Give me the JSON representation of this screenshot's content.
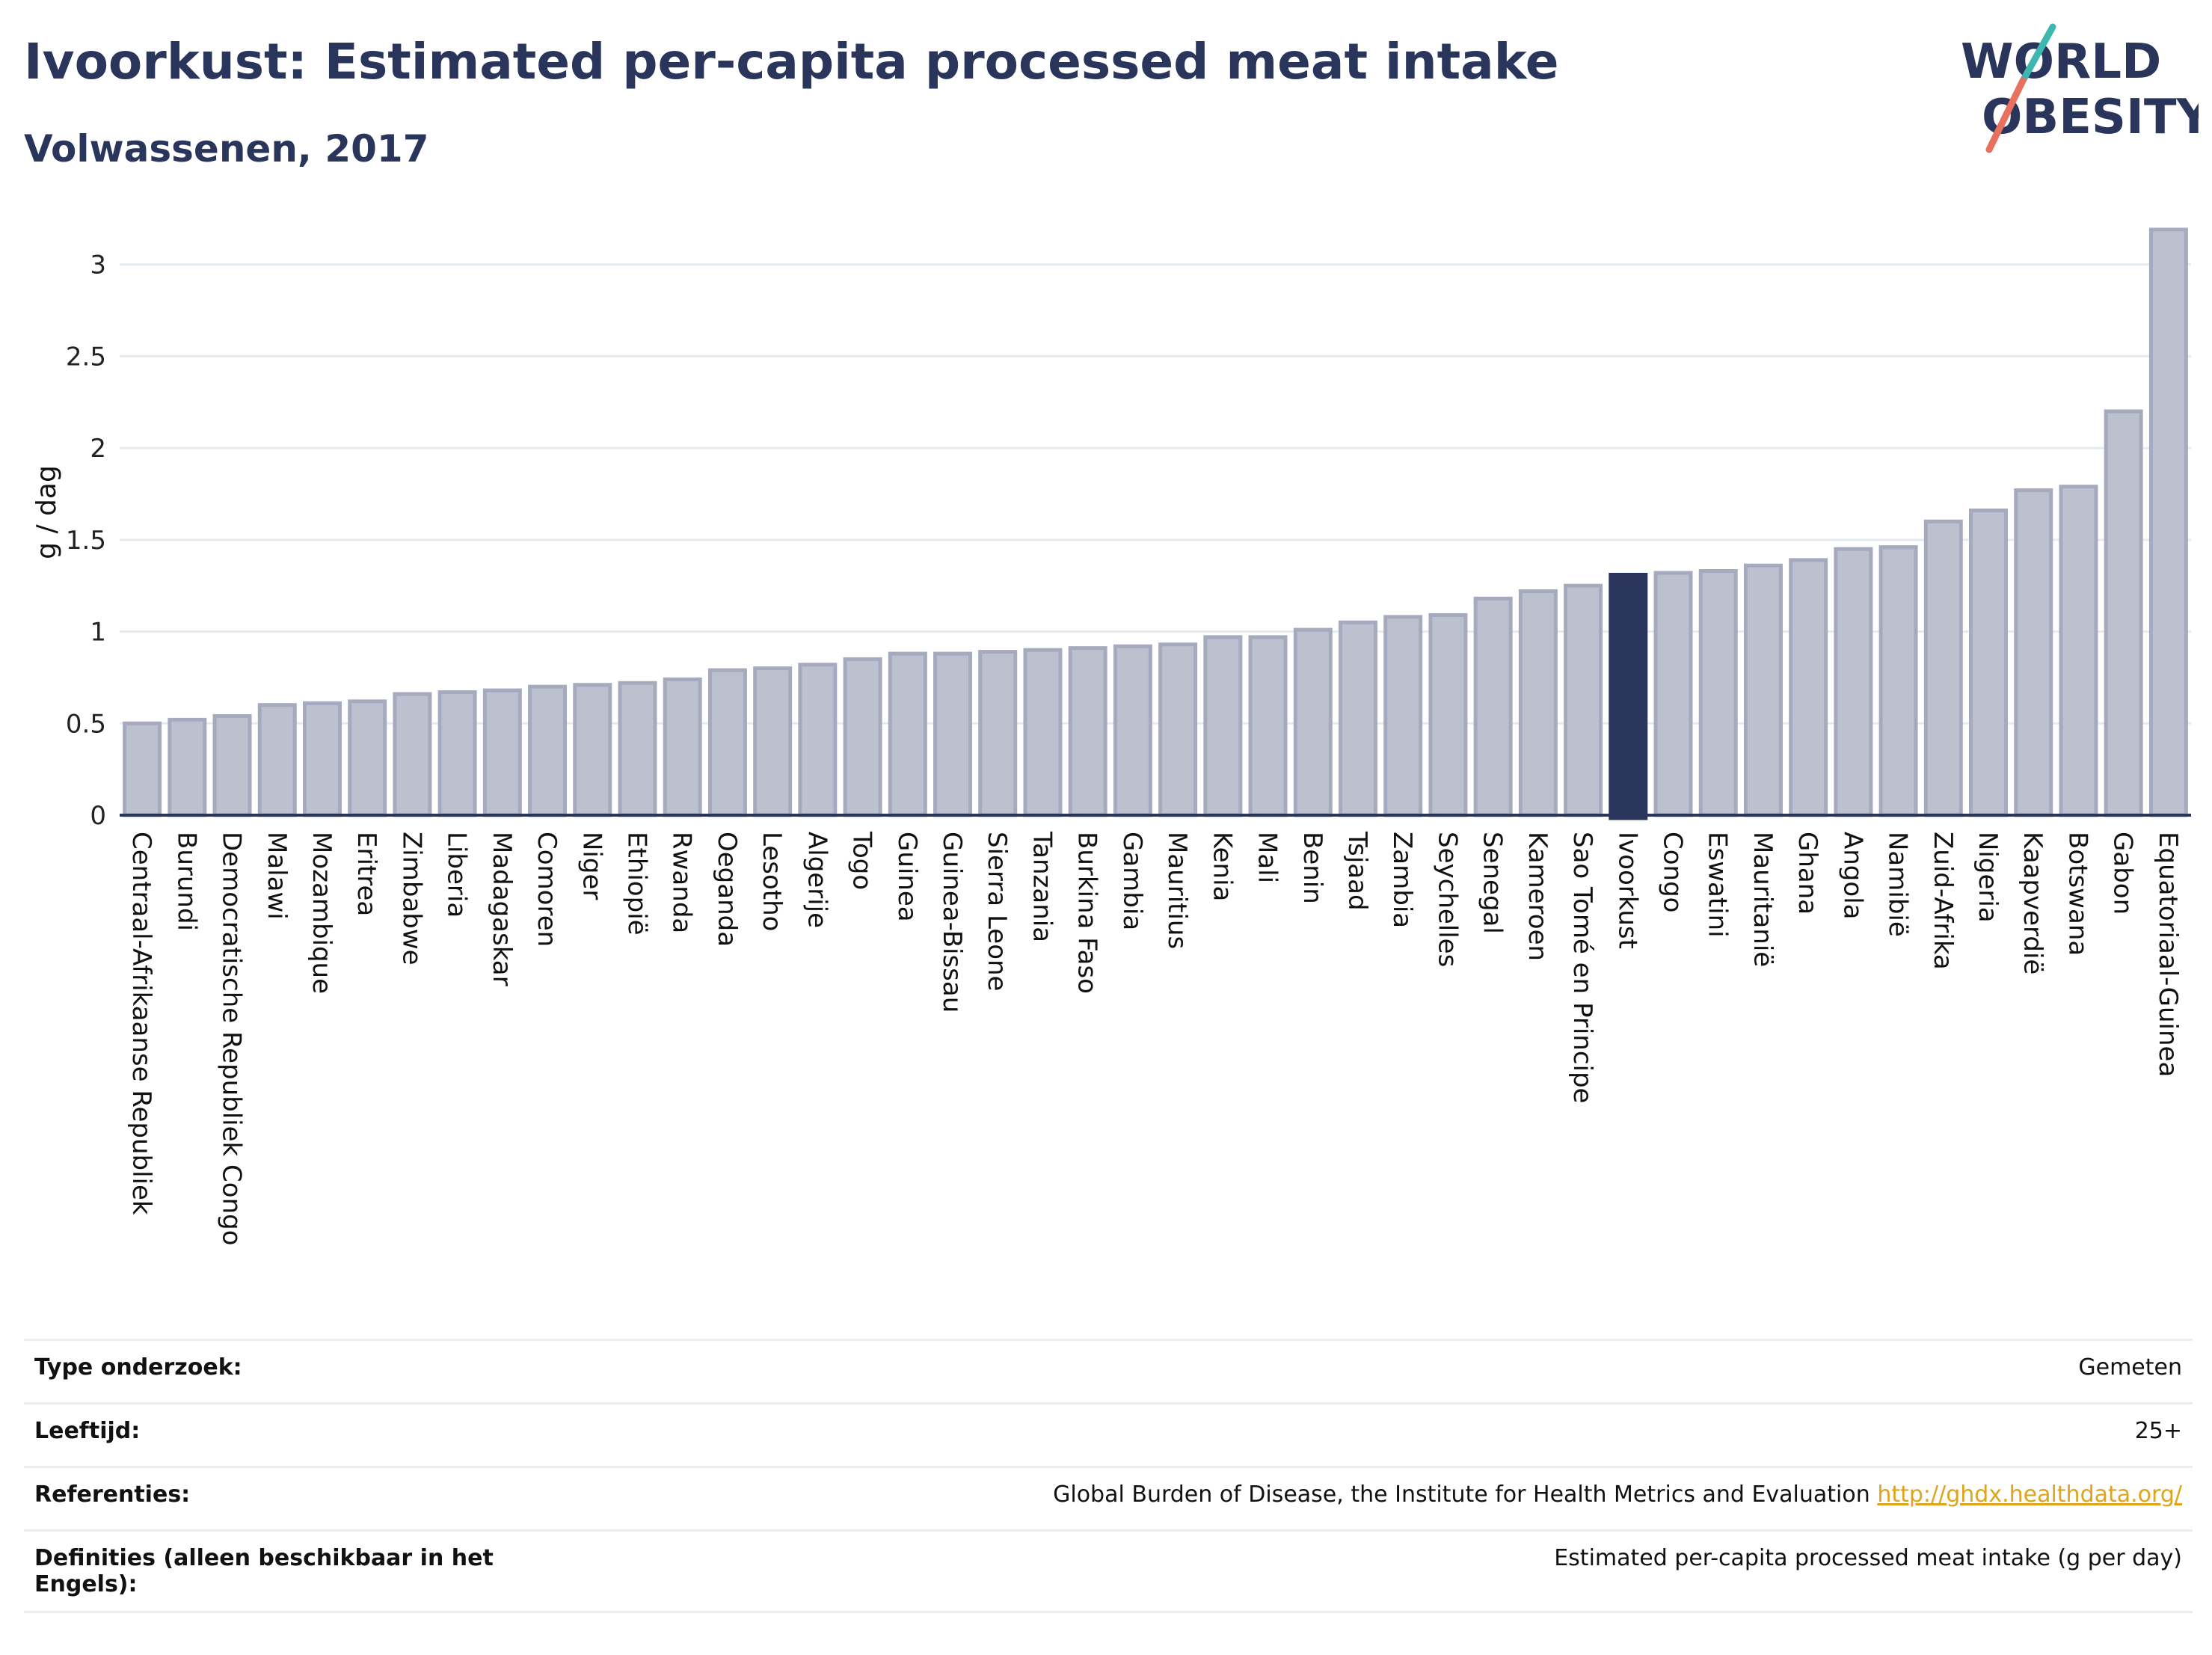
{
  "header": {
    "title": "Ivoorkust: Estimated per-capita processed meat intake",
    "subtitle": "Volwassenen, 2017",
    "logo_text_1": "WORLD",
    "logo_text_2": "OBESITY"
  },
  "colors": {
    "bar": "#bcc0cf",
    "bar_stroke": "#a5aabe",
    "highlight": "#2a355c",
    "grid": "#e6ebf0",
    "logo_teal": "#3fb7b0",
    "logo_coral": "#e8705f"
  },
  "chart_data": {
    "type": "bar",
    "title": "Ivoorkust: Estimated per-capita processed meat intake",
    "subtitle": "Volwassenen, 2017",
    "xlabel": "",
    "ylabel": "g / dag",
    "ylim": [
      0,
      3.3
    ],
    "yticks": [
      0,
      0.5,
      1,
      1.5,
      2,
      2.5,
      3
    ],
    "ytick_labels": [
      "0",
      "0.5",
      "1",
      "1.5",
      "2",
      "2.5",
      "3"
    ],
    "grid": true,
    "highlight": "Ivoorkust",
    "categories": [
      "Centraal-Afrikaanse Republiek",
      "Burundi",
      "Democratische Republiek Congo",
      "Malawi",
      "Mozambique",
      "Eritrea",
      "Zimbabwe",
      "Liberia",
      "Madagaskar",
      "Comoren",
      "Niger",
      "Ethiopië",
      "Rwanda",
      "Oeganda",
      "Lesotho",
      "Algerije",
      "Togo",
      "Guinea",
      "Guinea-Bissau",
      "Sierra Leone",
      "Tanzania",
      "Burkina Faso",
      "Gambia",
      "Mauritius",
      "Kenia",
      "Mali",
      "Benin",
      "Tsjaad",
      "Zambia",
      "Seychelles",
      "Senegal",
      "Kameroen",
      "Sao Tomé en Principe",
      "Ivoorkust",
      "Congo",
      "Eswatini",
      "Mauritanië",
      "Ghana",
      "Angola",
      "Namibië",
      "Zuid-Afrika",
      "Nigeria",
      "Kaapverdië",
      "Botswana",
      "Gabon",
      "Equatoriaal-Guinea"
    ],
    "values": [
      0.5,
      0.52,
      0.54,
      0.6,
      0.61,
      0.62,
      0.66,
      0.67,
      0.68,
      0.7,
      0.71,
      0.72,
      0.74,
      0.79,
      0.8,
      0.82,
      0.85,
      0.88,
      0.88,
      0.89,
      0.9,
      0.91,
      0.92,
      0.93,
      0.97,
      0.97,
      1.01,
      1.05,
      1.08,
      1.09,
      1.18,
      1.22,
      1.25,
      1.31,
      1.32,
      1.33,
      1.36,
      1.39,
      1.45,
      1.46,
      1.6,
      1.66,
      1.77,
      1.79,
      2.2,
      3.19
    ]
  },
  "info": {
    "rows": [
      {
        "label": "Type onderzoek:",
        "value": "Gemeten"
      },
      {
        "label": "Leeftijd:",
        "value": "25+"
      },
      {
        "label": "Referenties:",
        "value": "Global Burden of Disease, the Institute for Health Metrics and Evaluation",
        "link": "http://ghdx.healthdata.org/"
      },
      {
        "label": "Definities (alleen beschikbaar in het Engels):",
        "value": "Estimated per-capita processed meat intake (g per day)"
      }
    ]
  }
}
